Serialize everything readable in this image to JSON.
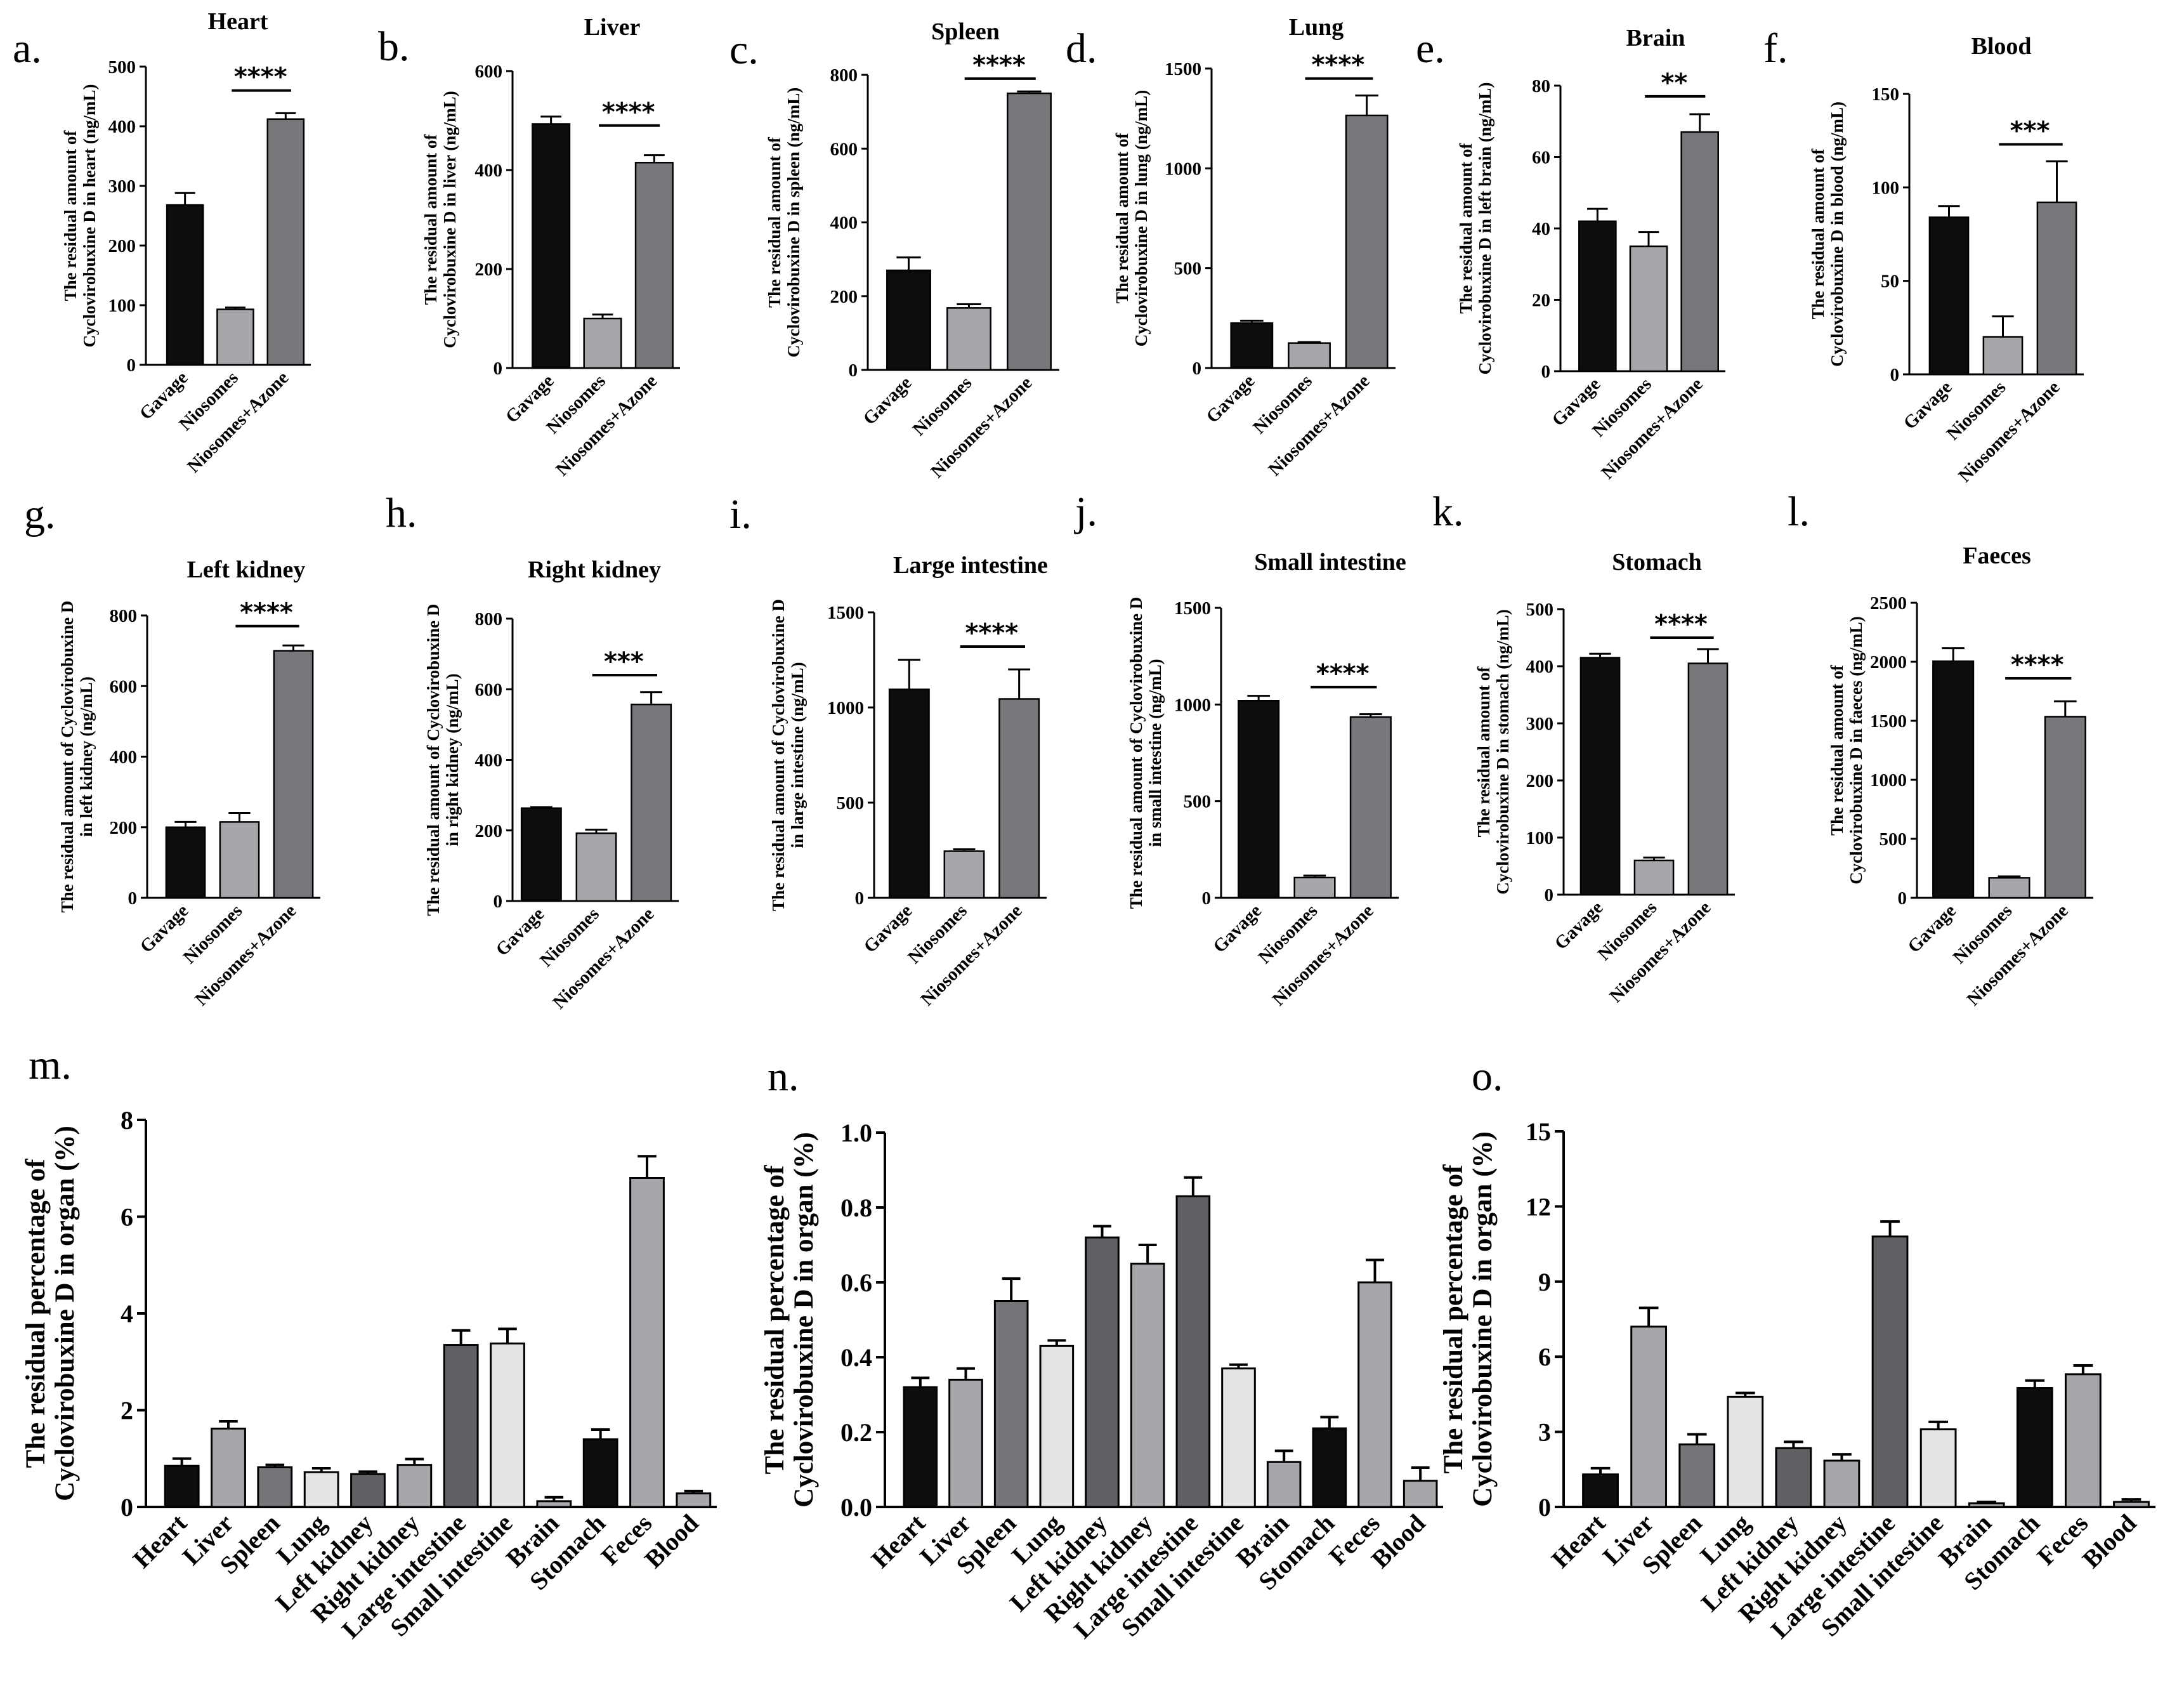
{
  "colors": {
    "black": "#0d0d0d",
    "gray": "#a6a6ab",
    "darkgray": "#77777c",
    "mid": "#747479",
    "light": "#e4e4e4",
    "dark": "#606065"
  },
  "chart_data": [
    {
      "id": "a",
      "type": "bar",
      "panel_label": "a.",
      "title": "Heart",
      "ylabel_lines": [
        "The residual amount of",
        "Cyclovirobuxine D in heart (ng/mL)"
      ],
      "categories": [
        "Gavage",
        "Niosomes",
        "Niosomes+Azone"
      ],
      "values": [
        268,
        93,
        412
      ],
      "errors": [
        20,
        3,
        10
      ],
      "colors": [
        "#0d0d0d",
        "#a6a6ab",
        "#77777c"
      ],
      "yticks": [
        0,
        100,
        200,
        300,
        400,
        500
      ],
      "ylim": [
        0,
        500
      ],
      "sig": {
        "label": "****",
        "from": 1,
        "to": 2,
        "y": 460
      }
    },
    {
      "id": "b",
      "type": "bar",
      "panel_label": "b.",
      "title": "Liver",
      "ylabel_lines": [
        "The residual amount of",
        "Cyclovirobuxine D in liver (ng/mL)"
      ],
      "categories": [
        "Gavage",
        "Niosomes",
        "Niosomes+Azone"
      ],
      "values": [
        493,
        100,
        415
      ],
      "errors": [
        15,
        8,
        15
      ],
      "colors": [
        "#0d0d0d",
        "#a6a6ab",
        "#77777c"
      ],
      "yticks": [
        0,
        200,
        400,
        600
      ],
      "ylim": [
        0,
        600
      ],
      "sig": {
        "label": "****",
        "from": 1,
        "to": 2,
        "y": 490
      }
    },
    {
      "id": "c",
      "type": "bar",
      "panel_label": "c.",
      "title": "Spleen",
      "ylabel_lines": [
        "The residual amount of",
        "Cyclovirobuxine D in spleen (ng/mL)"
      ],
      "categories": [
        "Gavage",
        "Niosomes",
        "Niosomes+Azone"
      ],
      "values": [
        270,
        168,
        750
      ],
      "errors": [
        35,
        10,
        5
      ],
      "colors": [
        "#0d0d0d",
        "#a6a6ab",
        "#77777c"
      ],
      "yticks": [
        0,
        200,
        400,
        600,
        800
      ],
      "ylim": [
        0,
        800
      ],
      "sig": {
        "label": "****",
        "from": 1,
        "to": 2,
        "y": 790
      }
    },
    {
      "id": "d",
      "type": "bar",
      "panel_label": "d.",
      "title": "Lung",
      "ylabel_lines": [
        "The residual amount of",
        "Cyclovirobuxine D in lung (ng/mL)"
      ],
      "categories": [
        "Gavage",
        "Niosomes",
        "Niosomes+Azone"
      ],
      "values": [
        225,
        125,
        1265
      ],
      "errors": [
        12,
        5,
        100
      ],
      "colors": [
        "#0d0d0d",
        "#a6a6ab",
        "#77777c"
      ],
      "yticks": [
        0,
        500,
        1000,
        1500
      ],
      "ylim": [
        0,
        1500
      ],
      "sig": {
        "label": "****",
        "from": 1,
        "to": 2,
        "y": 1450
      }
    },
    {
      "id": "e",
      "type": "bar",
      "panel_label": "e.",
      "title": "Brain",
      "ylabel_lines": [
        "The residual amount of",
        "Cyclovirobuxine D in left brain (ng/mL)"
      ],
      "categories": [
        "Gavage",
        "Niosomes",
        "Niosomes+Azone"
      ],
      "values": [
        42,
        35,
        67
      ],
      "errors": [
        3.5,
        4,
        5
      ],
      "colors": [
        "#0d0d0d",
        "#a6a6ab",
        "#77777c"
      ],
      "yticks": [
        0,
        20,
        40,
        60,
        80
      ],
      "ylim": [
        0,
        80
      ],
      "sig": {
        "label": "**",
        "from": 1,
        "to": 2,
        "y": 77
      }
    },
    {
      "id": "f",
      "type": "bar",
      "panel_label": "f.",
      "title": "Blood",
      "ylabel_lines": [
        "The residual amount of",
        "Cyclovirobuxine D in blood (ng/mL)"
      ],
      "categories": [
        "Gavage",
        "Niosomes",
        "Niosomes+Azone"
      ],
      "values": [
        84,
        20,
        92
      ],
      "errors": [
        6,
        11,
        22
      ],
      "colors": [
        "#0d0d0d",
        "#a6a6ab",
        "#77777c"
      ],
      "yticks": [
        0,
        50,
        100,
        150
      ],
      "ylim": [
        0,
        150
      ],
      "sig": {
        "label": "***",
        "from": 1,
        "to": 2,
        "y": 123
      }
    },
    {
      "id": "g",
      "type": "bar",
      "panel_label": "g.",
      "title": "Left kidney",
      "ylabel_lines": [
        "The residual amount of Cyclovirobuxine D",
        "in left kidney (ng/mL)"
      ],
      "categories": [
        "Gavage",
        "Niosomes",
        "Niosomes+Azone"
      ],
      "values": [
        200,
        215,
        700
      ],
      "errors": [
        15,
        25,
        15
      ],
      "colors": [
        "#0d0d0d",
        "#a6a6ab",
        "#77777c"
      ],
      "yticks": [
        0,
        200,
        400,
        600,
        800
      ],
      "ylim": [
        0,
        800
      ],
      "sig": {
        "label": "****",
        "from": 1,
        "to": 2,
        "y": 770
      }
    },
    {
      "id": "h",
      "type": "bar",
      "panel_label": "h.",
      "title": "Right kidney",
      "ylabel_lines": [
        "The residual amount of Cyclovirobuxine D",
        "in right kidney (ng/mL)"
      ],
      "categories": [
        "Gavage",
        "Niosomes",
        "Niosomes+Azone"
      ],
      "values": [
        263,
        192,
        557
      ],
      "errors": [
        3,
        10,
        35
      ],
      "colors": [
        "#0d0d0d",
        "#a6a6ab",
        "#77777c"
      ],
      "yticks": [
        0,
        200,
        400,
        600,
        800
      ],
      "ylim": [
        0,
        800
      ],
      "sig": {
        "label": "***",
        "from": 1,
        "to": 2,
        "y": 640
      }
    },
    {
      "id": "i",
      "type": "bar",
      "panel_label": "i.",
      "title": "Large intestine",
      "ylabel_lines": [
        "The residual amount of Cyclovirobuxine D",
        "in large intestine (ng/mL)"
      ],
      "categories": [
        "Gavage",
        "Niosomes",
        "Niosomes+Azone"
      ],
      "values": [
        1095,
        245,
        1045
      ],
      "errors": [
        155,
        10,
        155
      ],
      "colors": [
        "#0d0d0d",
        "#a6a6ab",
        "#77777c"
      ],
      "yticks": [
        0,
        500,
        1000,
        1500
      ],
      "ylim": [
        0,
        1500
      ],
      "sig": {
        "label": "****",
        "from": 1,
        "to": 2,
        "y": 1320
      }
    },
    {
      "id": "j",
      "type": "bar",
      "panel_label": "j.",
      "title": "Small intestine",
      "ylabel_lines": [
        "The residual amount of Cyclovirobuxine D",
        "in small intestine (ng/mL)"
      ],
      "categories": [
        "Gavage",
        "Niosomes",
        "Niosomes+Azone"
      ],
      "values": [
        1020,
        105,
        935
      ],
      "errors": [
        25,
        10,
        15
      ],
      "colors": [
        "#0d0d0d",
        "#a6a6ab",
        "#77777c"
      ],
      "yticks": [
        0,
        500,
        1000,
        1500
      ],
      "ylim": [
        0,
        1500
      ],
      "sig": {
        "label": "****",
        "from": 1,
        "to": 2,
        "y": 1090
      }
    },
    {
      "id": "k",
      "type": "bar",
      "panel_label": "k.",
      "title": "Stomach",
      "ylabel_lines": [
        "The residual amount of",
        "Cyclovirobuxine D in stomach (ng/mL)"
      ],
      "categories": [
        "Gavage",
        "Niosomes",
        "Niosomes+Azone"
      ],
      "values": [
        415,
        60,
        405
      ],
      "errors": [
        7,
        5,
        25
      ],
      "colors": [
        "#0d0d0d",
        "#a6a6ab",
        "#77777c"
      ],
      "yticks": [
        0,
        100,
        200,
        300,
        400,
        500
      ],
      "ylim": [
        0,
        500
      ],
      "sig": {
        "label": "****",
        "from": 1,
        "to": 2,
        "y": 450
      }
    },
    {
      "id": "l",
      "type": "bar",
      "panel_label": "l.",
      "title": "Faeces",
      "ylabel_lines": [
        "The residual amount of",
        "Cyclovirobuxine D in faeces (ng/mL)"
      ],
      "categories": [
        "Gavage",
        "Niosomes",
        "Niosomes+Azone"
      ],
      "values": [
        2005,
        170,
        1535
      ],
      "errors": [
        110,
        12,
        130
      ],
      "colors": [
        "#0d0d0d",
        "#a6a6ab",
        "#77777c"
      ],
      "yticks": [
        0,
        500,
        1000,
        1500,
        2000,
        2500
      ],
      "ylim": [
        0,
        2500
      ],
      "sig": {
        "label": "****",
        "from": 1,
        "to": 2,
        "y": 1860
      }
    },
    {
      "id": "m",
      "type": "bar",
      "panel_label": "m.",
      "title": "",
      "ylabel_lines": [
        "The residual percentage of",
        "Cyclovirobuxine D in organ (%)"
      ],
      "categories": [
        "Heart",
        "Liver",
        "Spleen",
        "Lung",
        "Left kidney",
        "Right kidney",
        "Large intestine",
        "Small intestine",
        "Brain",
        "Stomach",
        "Feces",
        "Blood"
      ],
      "values": [
        0.85,
        1.62,
        0.82,
        0.72,
        0.68,
        0.87,
        3.35,
        3.38,
        0.12,
        1.4,
        6.8,
        0.28
      ],
      "errors": [
        0.15,
        0.15,
        0.05,
        0.08,
        0.05,
        0.12,
        0.3,
        0.3,
        0.08,
        0.2,
        0.45,
        0.05
      ],
      "colors": [
        "#0d0d0d",
        "#a6a6ab",
        "#747479",
        "#e4e4e4",
        "#606065",
        "#a6a6ab",
        "#606065",
        "#e4e4e4",
        "#a6a6ab",
        "#0d0d0d",
        "#a6a6ab",
        "#a6a6ab"
      ],
      "yticks": [
        0,
        2,
        4,
        6,
        8
      ],
      "ylim": [
        0,
        8
      ],
      "sig": null
    },
    {
      "id": "n",
      "type": "bar",
      "panel_label": "n.",
      "title": "",
      "ylabel_lines": [
        "The residual percentage of",
        "Cyclovirobuxine D in organ (%)"
      ],
      "categories": [
        "Heart",
        "Liver",
        "Spleen",
        "Lung",
        "Left kidney",
        "Right kidney",
        "Large intestine",
        "Small intestine",
        "Brain",
        "Stomach",
        "Feces",
        "Blood"
      ],
      "values": [
        0.32,
        0.34,
        0.55,
        0.43,
        0.72,
        0.65,
        0.83,
        0.37,
        0.12,
        0.21,
        0.6,
        0.07
      ],
      "errors": [
        0.025,
        0.03,
        0.06,
        0.015,
        0.03,
        0.05,
        0.05,
        0.01,
        0.03,
        0.03,
        0.06,
        0.035
      ],
      "colors": [
        "#0d0d0d",
        "#a6a6ab",
        "#747479",
        "#e4e4e4",
        "#606065",
        "#a6a6ab",
        "#606065",
        "#e4e4e4",
        "#a6a6ab",
        "#0d0d0d",
        "#a6a6ab",
        "#a6a6ab"
      ],
      "yticks": [
        0.0,
        0.2,
        0.4,
        0.6,
        0.8,
        1.0
      ],
      "ylim": [
        0,
        1.0
      ],
      "sig": null
    },
    {
      "id": "o",
      "type": "bar",
      "panel_label": "o.",
      "title": "",
      "ylabel_lines": [
        "The residual percentage of",
        "Cyclovirobuxine D in organ (%)"
      ],
      "categories": [
        "Heart",
        "Liver",
        "Spleen",
        "Lung",
        "Left kidney",
        "Right kidney",
        "Large intestine",
        "Small intestine",
        "Brain",
        "Stomach",
        "Feces",
        "Blood"
      ],
      "values": [
        1.3,
        7.2,
        2.5,
        4.4,
        2.35,
        1.85,
        10.8,
        3.1,
        0.15,
        4.75,
        5.3,
        0.2
      ],
      "errors": [
        0.25,
        0.75,
        0.4,
        0.15,
        0.25,
        0.25,
        0.6,
        0.3,
        0.05,
        0.3,
        0.35,
        0.1
      ],
      "colors": [
        "#0d0d0d",
        "#a6a6ab",
        "#747479",
        "#e4e4e4",
        "#606065",
        "#a6a6ab",
        "#606065",
        "#e4e4e4",
        "#a6a6ab",
        "#0d0d0d",
        "#a6a6ab",
        "#a6a6ab"
      ],
      "yticks": [
        0,
        3,
        6,
        9,
        12,
        15
      ],
      "ylim": [
        0,
        15
      ],
      "sig": null
    }
  ]
}
